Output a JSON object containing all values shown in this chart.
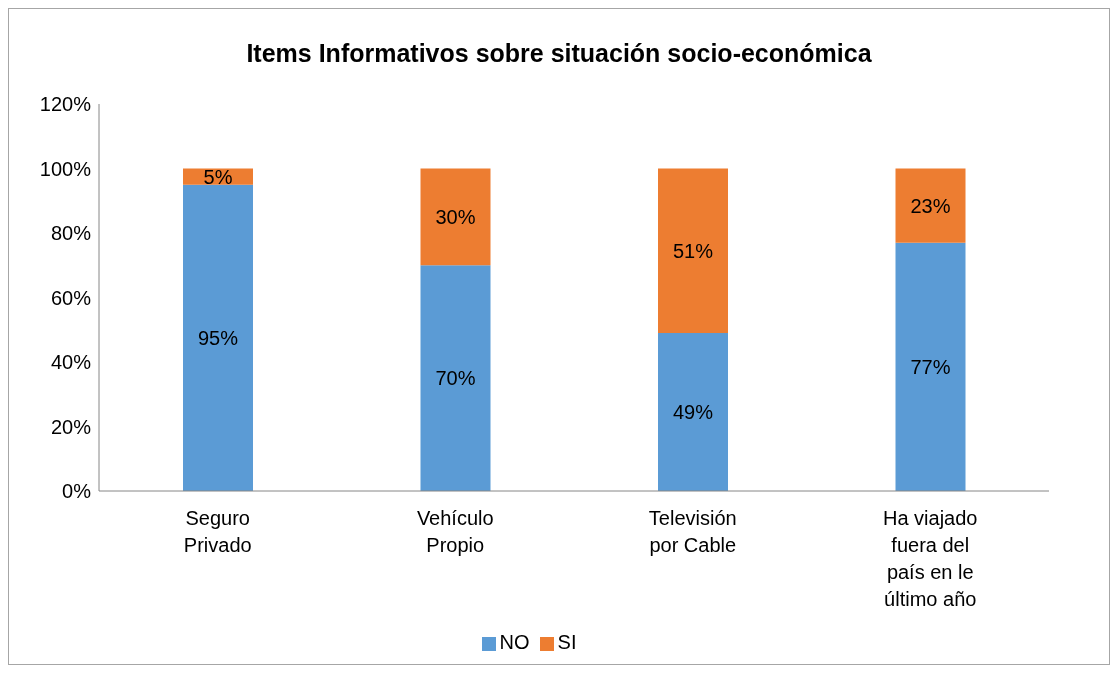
{
  "chart_data": {
    "type": "bar",
    "title": "Items Informativos sobre situación socio-económica",
    "categories": [
      "Seguro Privado",
      "Vehículo Propio",
      "Televisión por Cable",
      "Ha viajado fuera del país en le último año"
    ],
    "stacked": true,
    "series": [
      {
        "name": "NO",
        "color": "#5b9bd5",
        "values": [
          95,
          70,
          49,
          77
        ],
        "value_labels": [
          "95%",
          "70%",
          "49%",
          "77%"
        ]
      },
      {
        "name": "SI",
        "color": "#ed7d31",
        "values": [
          5,
          30,
          51,
          23
        ],
        "value_labels": [
          "5%",
          "30%",
          "51%",
          "23%"
        ]
      }
    ],
    "ylim": [
      0,
      120
    ],
    "yticks": [
      {
        "value": 0,
        "label": "0%"
      },
      {
        "value": 20,
        "label": "20%"
      },
      {
        "value": 40,
        "label": "40%"
      },
      {
        "value": 60,
        "label": "60%"
      },
      {
        "value": 80,
        "label": "80%"
      },
      {
        "value": 100,
        "label": "100%"
      },
      {
        "value": 120,
        "label": "120%"
      }
    ],
    "grid": false,
    "legend": "bottom"
  }
}
